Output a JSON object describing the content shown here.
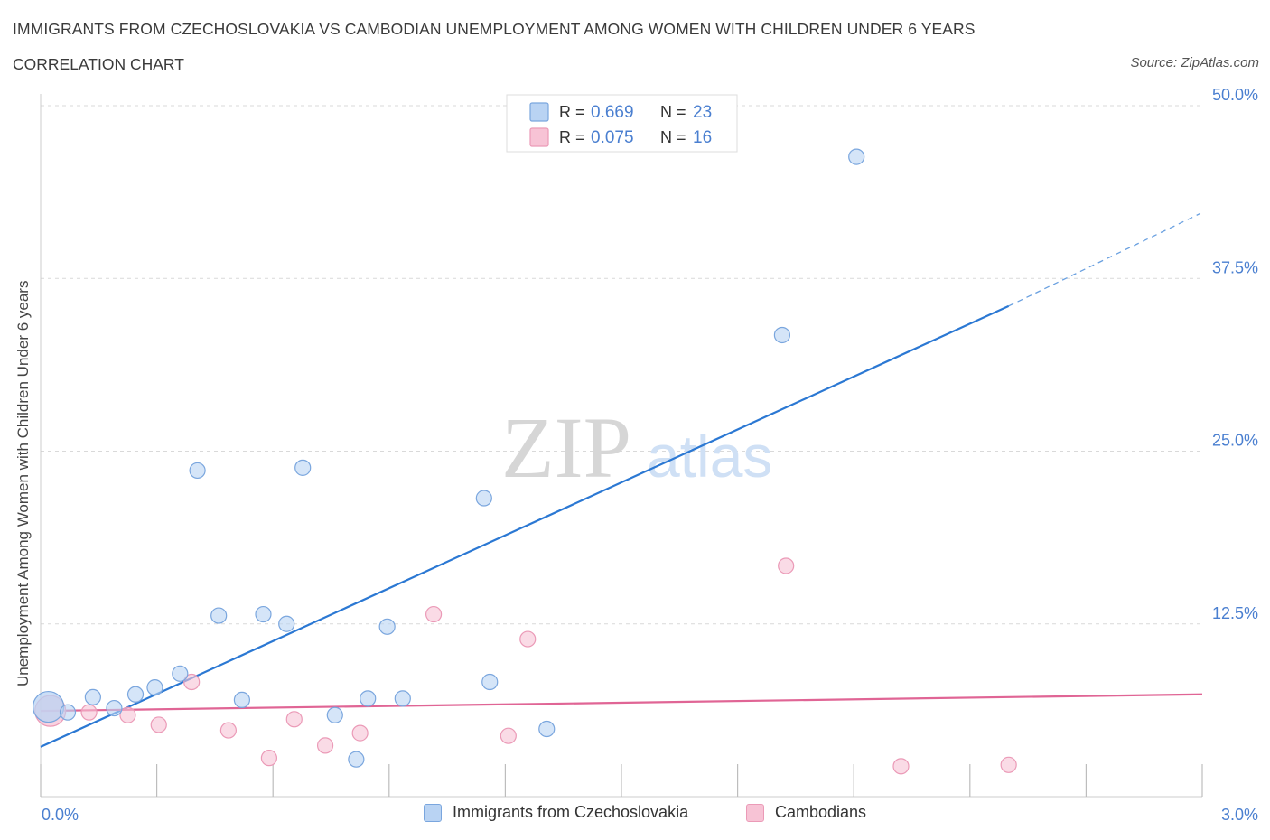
{
  "title": "IMMIGRANTS FROM CZECHOSLOVAKIA VS CAMBODIAN UNEMPLOYMENT AMONG WOMEN WITH CHILDREN UNDER 6 YEARS",
  "subtitle": "CORRELATION CHART",
  "source": "Source: ZipAtlas.com",
  "watermark": {
    "zip": "ZIP",
    "atlas": "atlas"
  },
  "colors": {
    "blue": "#2b78d3",
    "blue_fill": "#b9d3f3",
    "blue_stroke": "#7aa6de",
    "pink": "#e06595",
    "pink_fill": "#f7c3d5",
    "pink_stroke": "#eb9ab7",
    "axis_text": "#4a7fd0",
    "grid": "#d9d9d9"
  },
  "chart_data": {
    "type": "scatter",
    "ylabel": "Unemployment Among Women with Children Under 6 years",
    "xlim": [
      0,
      3.0
    ],
    "ylim": [
      0,
      50
    ],
    "x_tick_labels": [
      "0.0%",
      "3.0%"
    ],
    "y_ticks": [
      12.5,
      25.0,
      37.5,
      50.0
    ],
    "y_tick_labels": [
      "12.5%",
      "25.0%",
      "37.5%",
      "50.0%"
    ],
    "grid": true,
    "legend_placement": "top-center",
    "series": [
      {
        "name": "Immigrants from Czechoslovakia",
        "color": "blue",
        "r": "0.669",
        "n": "23",
        "points": [
          {
            "x": 0.02,
            "y": 6.5,
            "big": true
          },
          {
            "x": 0.07,
            "y": 6.1
          },
          {
            "x": 0.135,
            "y": 7.2
          },
          {
            "x": 0.19,
            "y": 6.4
          },
          {
            "x": 0.245,
            "y": 7.4
          },
          {
            "x": 0.295,
            "y": 7.9
          },
          {
            "x": 0.36,
            "y": 8.9
          },
          {
            "x": 0.405,
            "y": 23.6
          },
          {
            "x": 0.46,
            "y": 13.1
          },
          {
            "x": 0.52,
            "y": 7.0
          },
          {
            "x": 0.575,
            "y": 13.2
          },
          {
            "x": 0.635,
            "y": 12.5
          },
          {
            "x": 0.677,
            "y": 23.8
          },
          {
            "x": 0.76,
            "y": 5.9
          },
          {
            "x": 0.815,
            "y": 2.7
          },
          {
            "x": 0.845,
            "y": 7.1
          },
          {
            "x": 0.895,
            "y": 12.3
          },
          {
            "x": 0.935,
            "y": 7.1
          },
          {
            "x": 1.145,
            "y": 21.6
          },
          {
            "x": 1.16,
            "y": 8.3
          },
          {
            "x": 1.307,
            "y": 4.9
          },
          {
            "x": 1.915,
            "y": 33.4
          },
          {
            "x": 2.107,
            "y": 46.3
          }
        ],
        "trend": {
          "x0": 0.0,
          "y0": 3.6,
          "x1": 2.5,
          "y1": 35.5,
          "x_dash_end": 2.995,
          "y_dash_end": 42.2
        }
      },
      {
        "name": "Cambodians",
        "color": "pink",
        "r": "0.075",
        "n": "16",
        "points": [
          {
            "x": 0.025,
            "y": 6.2,
            "big": true
          },
          {
            "x": 0.125,
            "y": 6.1
          },
          {
            "x": 0.225,
            "y": 5.9
          },
          {
            "x": 0.305,
            "y": 5.2
          },
          {
            "x": 0.39,
            "y": 8.3
          },
          {
            "x": 0.485,
            "y": 4.8
          },
          {
            "x": 0.59,
            "y": 2.8
          },
          {
            "x": 0.655,
            "y": 5.6
          },
          {
            "x": 0.735,
            "y": 3.7
          },
          {
            "x": 0.825,
            "y": 4.6
          },
          {
            "x": 1.015,
            "y": 13.2
          },
          {
            "x": 1.208,
            "y": 4.4
          },
          {
            "x": 1.258,
            "y": 11.4
          },
          {
            "x": 1.925,
            "y": 16.7
          },
          {
            "x": 2.222,
            "y": 2.2
          },
          {
            "x": 2.5,
            "y": 2.3
          }
        ],
        "trend": {
          "x0": 0.0,
          "y0": 6.2,
          "x1": 3.0,
          "y1": 7.4
        }
      }
    ]
  },
  "legend": {
    "rows": [
      {
        "r_label": "R = ",
        "r_value": "0.669",
        "n_label": "N = ",
        "n_value": "23"
      },
      {
        "r_label": "R = ",
        "r_value": "0.075",
        "n_label": "N = ",
        "n_value": "16"
      }
    ]
  }
}
